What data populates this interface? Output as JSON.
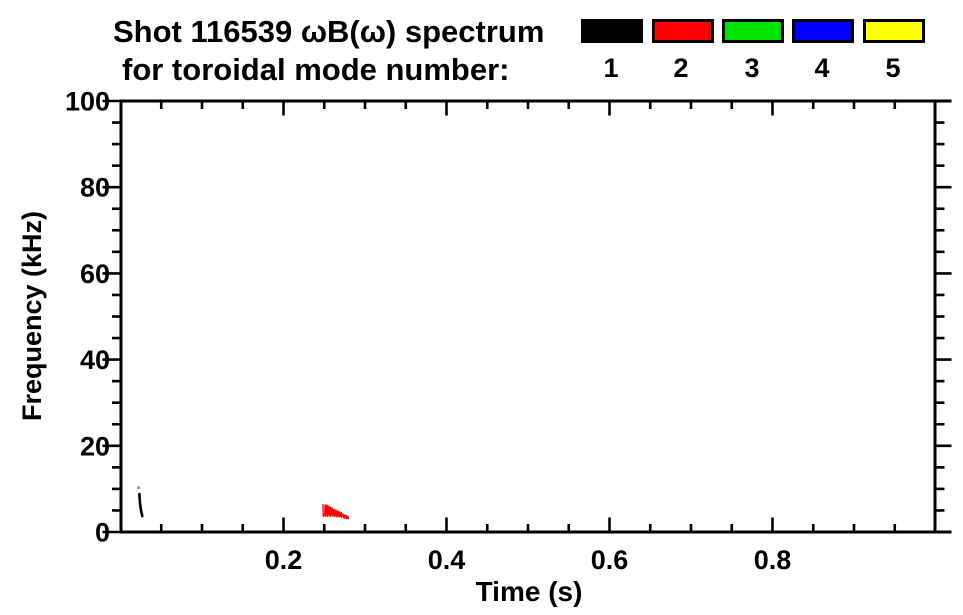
{
  "header": {
    "title_line1": "Shot 116539 ωB(ω) spectrum",
    "title_line2": "for toroidal mode number:"
  },
  "chart_data": {
    "type": "scatter",
    "title": "Shot 116539 ωB(ω) spectrum for toroidal mode number",
    "background_color": "#ffffff",
    "legend": [
      {
        "label": "1",
        "color": "#000000"
      },
      {
        "label": "2",
        "color": "#ff0000"
      },
      {
        "label": "3",
        "color": "#00e500"
      },
      {
        "label": "4",
        "color": "#0000ff"
      },
      {
        "label": "5",
        "color": "#ffff00"
      }
    ],
    "x_axis": {
      "label": "Time (s)",
      "range": [
        0,
        1.0
      ],
      "major_ticks": [
        0.2,
        0.4,
        0.6,
        0.8
      ],
      "tick_labels": [
        "0.2",
        "0.4",
        "0.6",
        "0.8"
      ],
      "minor_tick_step": 0.05
    },
    "y_axis": {
      "label": "Frequency (kHz)",
      "range": [
        0,
        100
      ],
      "major_ticks": [
        0,
        20,
        40,
        60,
        80,
        100
      ],
      "tick_labels": [
        "0",
        "20",
        "40",
        "60",
        "80",
        "100"
      ],
      "minor_tick_step": 5
    },
    "series": [
      {
        "name": "mode n=1",
        "color": "#000000",
        "stroke_width": 2.6,
        "segments": [
          [
            [
              0.0232,
              8.8
            ],
            [
              0.0236,
              7.6
            ],
            [
              0.0241,
              6.5
            ],
            [
              0.0247,
              5.6
            ],
            [
              0.0254,
              4.8
            ],
            [
              0.0262,
              4.1
            ],
            [
              0.0268,
              3.7
            ]
          ]
        ],
        "points": [
          {
            "t": 0.0222,
            "f": 10.3,
            "color": "#8f8f8f"
          }
        ]
      },
      {
        "name": "mode n=2",
        "color": "#ff0000",
        "stroke_width": 1.3,
        "segments": [
          [
            [
              0.2484,
              6.4
            ],
            [
              0.2486,
              4.8
            ],
            [
              0.2488,
              3.6
            ],
            [
              0.2491,
              4.1
            ]
          ],
          [
            [
              0.2505,
              3.8
            ],
            [
              0.2511,
              6.2
            ],
            [
              0.2516,
              3.7
            ],
            [
              0.2522,
              6.3
            ],
            [
              0.2527,
              4.0
            ],
            [
              0.2533,
              6.0
            ],
            [
              0.2538,
              3.6
            ],
            [
              0.2544,
              6.2
            ],
            [
              0.2549,
              4.1
            ],
            [
              0.2555,
              5.8
            ],
            [
              0.256,
              3.7
            ],
            [
              0.2566,
              5.9
            ],
            [
              0.2571,
              4.0
            ],
            [
              0.2577,
              5.7
            ],
            [
              0.2582,
              3.6
            ],
            [
              0.2588,
              5.5
            ],
            [
              0.2593,
              4.0
            ],
            [
              0.2599,
              5.6
            ],
            [
              0.2604,
              3.7
            ],
            [
              0.261,
              5.2
            ],
            [
              0.2615,
              3.9
            ],
            [
              0.2621,
              5.3
            ],
            [
              0.2626,
              3.6
            ],
            [
              0.2632,
              5.0
            ],
            [
              0.2637,
              3.9
            ],
            [
              0.2643,
              5.1
            ],
            [
              0.2648,
              3.5
            ],
            [
              0.2654,
              4.8
            ],
            [
              0.2659,
              3.8
            ],
            [
              0.2665,
              4.9
            ],
            [
              0.267,
              3.5
            ],
            [
              0.2676,
              4.6
            ],
            [
              0.2681,
              3.7
            ],
            [
              0.2687,
              4.7
            ],
            [
              0.2692,
              3.5
            ],
            [
              0.2698,
              4.4
            ],
            [
              0.2703,
              3.6
            ],
            [
              0.2709,
              4.5
            ],
            [
              0.2714,
              3.4
            ],
            [
              0.272,
              4.2
            ]
          ],
          [
            [
              0.2732,
              4.1
            ],
            [
              0.2738,
              3.3
            ],
            [
              0.2744,
              4.0
            ],
            [
              0.275,
              3.2
            ],
            [
              0.2756,
              3.9
            ],
            [
              0.2762,
              3.2
            ],
            [
              0.2768,
              3.8
            ],
            [
              0.2774,
              3.1
            ],
            [
              0.278,
              3.7
            ],
            [
              0.2786,
              3.2
            ],
            [
              0.2792,
              3.6
            ],
            [
              0.2798,
              3.1
            ]
          ]
        ],
        "points": []
      },
      {
        "name": "mode n=3",
        "color": "#00e500",
        "stroke_width": 1.3,
        "segments": [],
        "points": []
      },
      {
        "name": "mode n=4",
        "color": "#0000ff",
        "stroke_width": 1.3,
        "segments": [],
        "points": []
      },
      {
        "name": "mode n=5",
        "color": "#ffff00",
        "stroke_width": 1.3,
        "segments": [],
        "points": []
      }
    ]
  }
}
